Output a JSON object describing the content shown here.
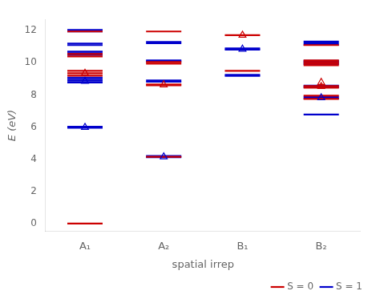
{
  "chart_data": {
    "type": "levels",
    "xlabel": "spatial irrep",
    "ylabel": "E (eV)",
    "categories": [
      "A₁",
      "A₂",
      "B₁",
      "B₂"
    ],
    "ylim": [
      -0.5,
      12.7
    ],
    "yticks": [
      0,
      2,
      4,
      6,
      8,
      10,
      12
    ],
    "grid": false,
    "legend": "lower right",
    "marker": "triangle",
    "series": [
      {
        "name": "S = 0",
        "color": "#cc0000",
        "values": [
          [
            0.0,
            9.2,
            9.35,
            9.5,
            10.4,
            10.55,
            11.95
          ],
          [
            4.15,
            8.6,
            8.65,
            9.95,
            10.05,
            11.95
          ],
          [
            9.5,
            11.72
          ],
          [
            7.75,
            7.95,
            8.45,
            8.55,
            9.85,
            9.95,
            10.05,
            10.15,
            11.1
          ]
        ],
        "triangles": [
          [
            9.35
          ],
          [
            8.63
          ],
          [
            11.72
          ],
          [
            8.78,
            8.52
          ]
        ]
      },
      {
        "name": "S = 1",
        "color": "#0000cc",
        "values": [
          [
            5.95,
            6.02,
            8.78,
            8.88,
            8.98,
            9.08,
            10.5,
            10.6,
            10.7,
            11.1,
            11.2,
            11.95,
            12.05
          ],
          [
            4.12,
            4.2,
            8.82,
            8.9,
            10.08,
            10.15,
            11.22,
            11.3
          ],
          [
            9.18,
            9.25,
            10.82,
            10.9
          ],
          [
            6.78,
            7.78,
            7.88,
            8.48,
            8.58,
            9.92,
            10.02,
            10.12,
            11.12,
            11.22,
            11.32
          ]
        ],
        "triangles": [
          [
            5.98,
            8.85
          ],
          [
            4.15
          ],
          [
            10.85
          ],
          [
            7.82
          ]
        ]
      }
    ]
  }
}
